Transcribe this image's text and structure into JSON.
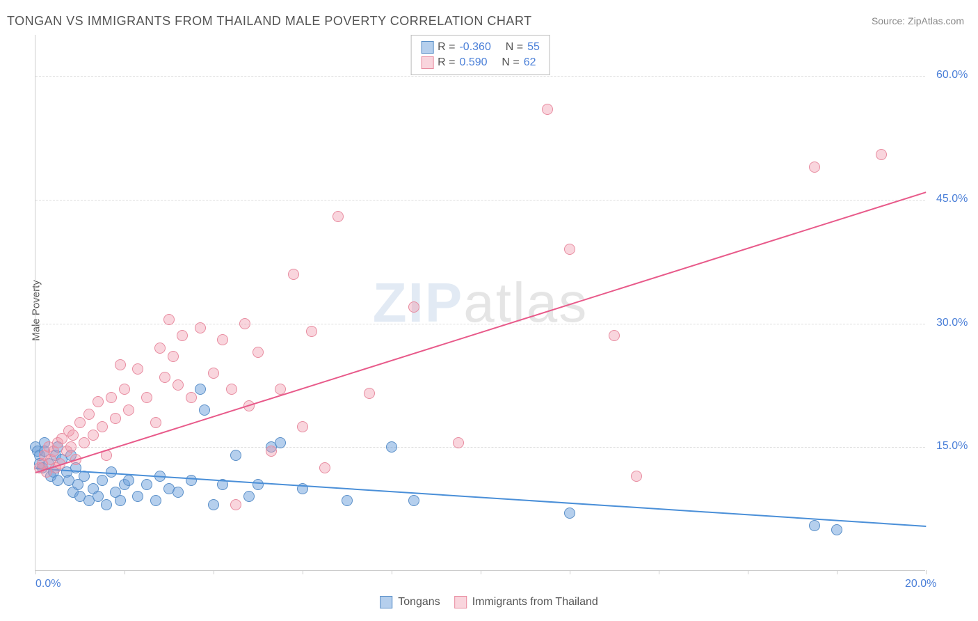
{
  "title": "TONGAN VS IMMIGRANTS FROM THAILAND MALE POVERTY CORRELATION CHART",
  "source": "Source: ZipAtlas.com",
  "ylabel": "Male Poverty",
  "watermark_zip": "ZIP",
  "watermark_atlas": "atlas",
  "chart": {
    "type": "scatter",
    "xlim": [
      0,
      20
    ],
    "ylim": [
      0,
      65
    ],
    "xticks": [
      0,
      2,
      4,
      6,
      8,
      10,
      12,
      14,
      16,
      18,
      20
    ],
    "xtick_labels_shown": {
      "0": "0.0%",
      "20": "20.0%"
    },
    "yticks": [
      15,
      30,
      45,
      60
    ],
    "ytick_labels": [
      "15.0%",
      "30.0%",
      "45.0%",
      "60.0%"
    ],
    "grid_color": "#dddddd",
    "background_color": "#ffffff",
    "marker_size": 16,
    "series": [
      {
        "name": "Tongans",
        "color_fill": "rgba(108,160,220,0.5)",
        "color_stroke": "#5a8fc8",
        "R": "-0.360",
        "N": "55",
        "trend": {
          "x1": 0,
          "y1": 12.5,
          "x2": 20,
          "y2": 5.5,
          "color": "#4a8fd8"
        },
        "points": [
          [
            0.0,
            15.0
          ],
          [
            0.05,
            14.5
          ],
          [
            0.1,
            14.0
          ],
          [
            0.1,
            13.0
          ],
          [
            0.15,
            12.5
          ],
          [
            0.2,
            15.5
          ],
          [
            0.2,
            14.5
          ],
          [
            0.3,
            13.0
          ],
          [
            0.35,
            11.5
          ],
          [
            0.4,
            12.0
          ],
          [
            0.45,
            14.0
          ],
          [
            0.5,
            15.0
          ],
          [
            0.5,
            11.0
          ],
          [
            0.6,
            13.5
          ],
          [
            0.7,
            12.0
          ],
          [
            0.75,
            11.0
          ],
          [
            0.8,
            14.0
          ],
          [
            0.85,
            9.5
          ],
          [
            0.9,
            12.5
          ],
          [
            0.95,
            10.5
          ],
          [
            1.0,
            9.0
          ],
          [
            1.1,
            11.5
          ],
          [
            1.2,
            8.5
          ],
          [
            1.3,
            10.0
          ],
          [
            1.4,
            9.0
          ],
          [
            1.5,
            11.0
          ],
          [
            1.6,
            8.0
          ],
          [
            1.7,
            12.0
          ],
          [
            1.8,
            9.5
          ],
          [
            1.9,
            8.5
          ],
          [
            2.0,
            10.5
          ],
          [
            2.1,
            11.0
          ],
          [
            2.3,
            9.0
          ],
          [
            2.5,
            10.5
          ],
          [
            2.7,
            8.5
          ],
          [
            2.8,
            11.5
          ],
          [
            3.0,
            10.0
          ],
          [
            3.2,
            9.5
          ],
          [
            3.5,
            11.0
          ],
          [
            3.7,
            22.0
          ],
          [
            3.8,
            19.5
          ],
          [
            4.0,
            8.0
          ],
          [
            4.2,
            10.5
          ],
          [
            4.5,
            14.0
          ],
          [
            4.8,
            9.0
          ],
          [
            5.0,
            10.5
          ],
          [
            5.3,
            15.0
          ],
          [
            5.5,
            15.5
          ],
          [
            6.0,
            10.0
          ],
          [
            7.0,
            8.5
          ],
          [
            8.0,
            15.0
          ],
          [
            8.5,
            8.5
          ],
          [
            12.0,
            7.0
          ],
          [
            17.5,
            5.5
          ],
          [
            18.0,
            5.0
          ]
        ]
      },
      {
        "name": "Immigrants from Thailand",
        "color_fill": "rgba(240,150,170,0.4)",
        "color_stroke": "#e88ca0",
        "R": "0.590",
        "N": "62",
        "trend": {
          "x1": 0,
          "y1": 12.0,
          "x2": 20,
          "y2": 46.0,
          "color": "#e85a8a"
        },
        "points": [
          [
            0.1,
            12.5
          ],
          [
            0.15,
            13.0
          ],
          [
            0.2,
            14.0
          ],
          [
            0.25,
            12.0
          ],
          [
            0.3,
            15.0
          ],
          [
            0.35,
            13.5
          ],
          [
            0.4,
            14.5
          ],
          [
            0.45,
            12.5
          ],
          [
            0.5,
            15.5
          ],
          [
            0.55,
            13.0
          ],
          [
            0.6,
            16.0
          ],
          [
            0.7,
            14.5
          ],
          [
            0.75,
            17.0
          ],
          [
            0.8,
            15.0
          ],
          [
            0.85,
            16.5
          ],
          [
            0.9,
            13.5
          ],
          [
            1.0,
            18.0
          ],
          [
            1.1,
            15.5
          ],
          [
            1.2,
            19.0
          ],
          [
            1.3,
            16.5
          ],
          [
            1.4,
            20.5
          ],
          [
            1.5,
            17.5
          ],
          [
            1.6,
            14.0
          ],
          [
            1.7,
            21.0
          ],
          [
            1.8,
            18.5
          ],
          [
            1.9,
            25.0
          ],
          [
            2.0,
            22.0
          ],
          [
            2.1,
            19.5
          ],
          [
            2.3,
            24.5
          ],
          [
            2.5,
            21.0
          ],
          [
            2.7,
            18.0
          ],
          [
            2.8,
            27.0
          ],
          [
            2.9,
            23.5
          ],
          [
            3.0,
            30.5
          ],
          [
            3.1,
            26.0
          ],
          [
            3.2,
            22.5
          ],
          [
            3.3,
            28.5
          ],
          [
            3.5,
            21.0
          ],
          [
            3.7,
            29.5
          ],
          [
            4.0,
            24.0
          ],
          [
            4.2,
            28.0
          ],
          [
            4.4,
            22.0
          ],
          [
            4.5,
            8.0
          ],
          [
            4.7,
            30.0
          ],
          [
            4.8,
            20.0
          ],
          [
            5.0,
            26.5
          ],
          [
            5.3,
            14.5
          ],
          [
            5.5,
            22.0
          ],
          [
            5.8,
            36.0
          ],
          [
            6.0,
            17.5
          ],
          [
            6.2,
            29.0
          ],
          [
            6.5,
            12.5
          ],
          [
            6.8,
            43.0
          ],
          [
            7.5,
            21.5
          ],
          [
            8.5,
            32.0
          ],
          [
            9.5,
            15.5
          ],
          [
            11.5,
            56.0
          ],
          [
            12.0,
            39.0
          ],
          [
            13.0,
            28.5
          ],
          [
            13.5,
            11.5
          ],
          [
            17.5,
            49.0
          ],
          [
            19.0,
            50.5
          ]
        ]
      }
    ]
  },
  "legend_top": {
    "R_label": "R =",
    "N_label": "N ="
  },
  "legend_bottom": {
    "items": [
      "Tongans",
      "Immigrants from Thailand"
    ]
  },
  "colors": {
    "text": "#555555",
    "axis_label": "#4a7fd8"
  }
}
